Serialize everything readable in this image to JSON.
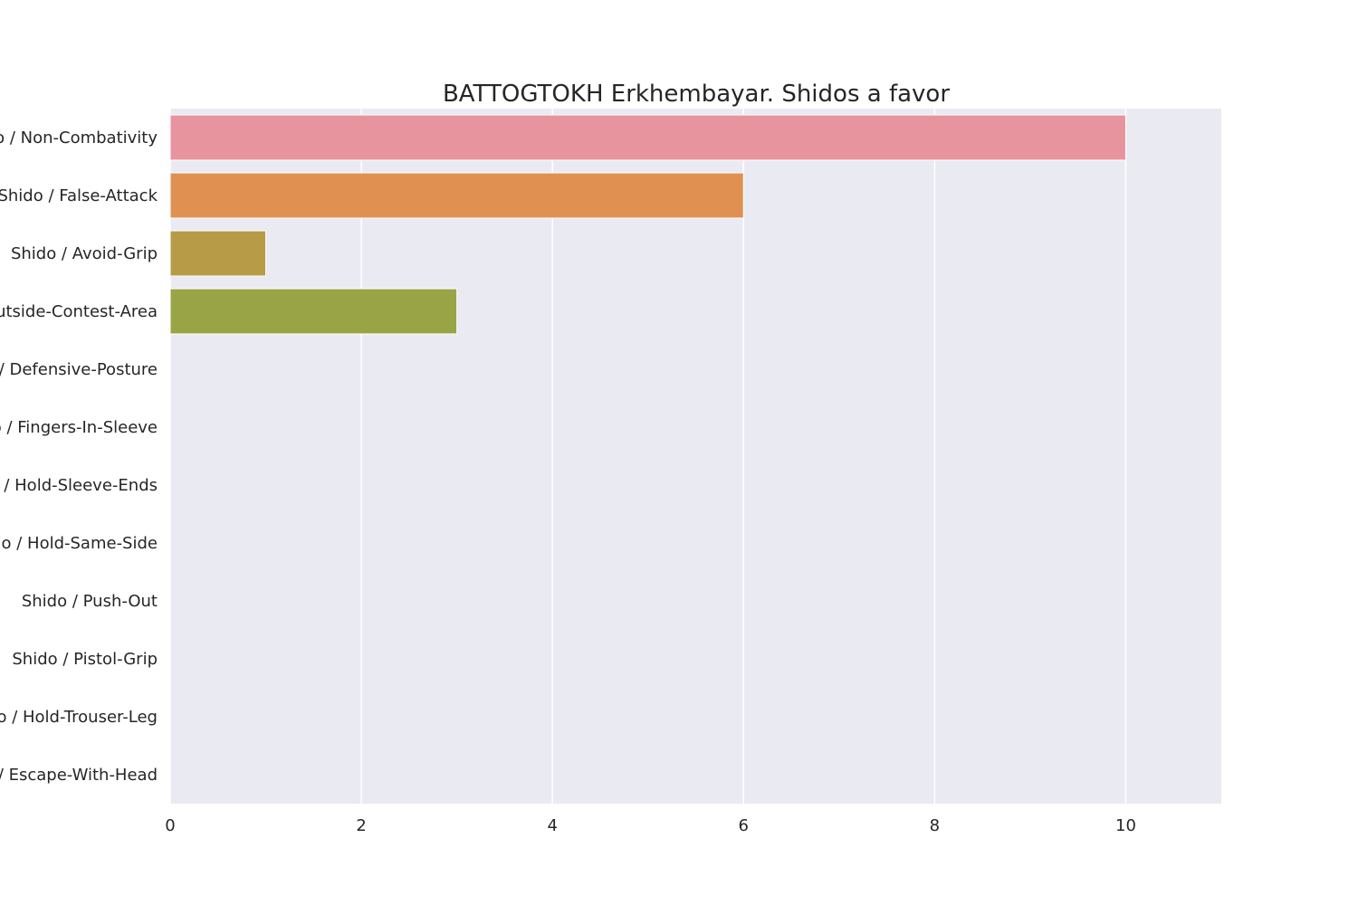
{
  "chart_data": {
    "type": "bar",
    "orientation": "horizontal",
    "title": "BATTOGTOKH Erkhembayar. Shidos a favor",
    "xlabel": "",
    "ylabel": "",
    "xlim": [
      0,
      11
    ],
    "xticks": [
      0,
      2,
      4,
      6,
      8,
      10
    ],
    "grid": true,
    "categories": [
      "Shido / Non-Combativity",
      "Shido / False-Attack",
      "Shido / Avoid-Grip",
      "Shido / Outside-Contest-Area",
      "Shido / Defensive-Posture",
      "Shido / Fingers-In-Sleeve",
      "Shido / Hold-Sleeve-Ends",
      "Shido / Hold-Same-Side",
      "Shido / Push-Out",
      "Shido / Pistol-Grip",
      "Shido / Hold-Trouser-Leg",
      "Shido / Escape-With-Head"
    ],
    "values": [
      10,
      6,
      1,
      3,
      0,
      0,
      0,
      0,
      0,
      0,
      0,
      0
    ],
    "colors": [
      "#e8949f",
      "#e09152",
      "#b89b47",
      "#99a446",
      "#6aac5a",
      "#52af8c",
      "#55ada8",
      "#57aac0",
      "#6aa3d8",
      "#a79ae6",
      "#d98ae0",
      "#e88bbf"
    ],
    "plot_background": "#eaeaf2",
    "grid_color": "#ffffff"
  }
}
